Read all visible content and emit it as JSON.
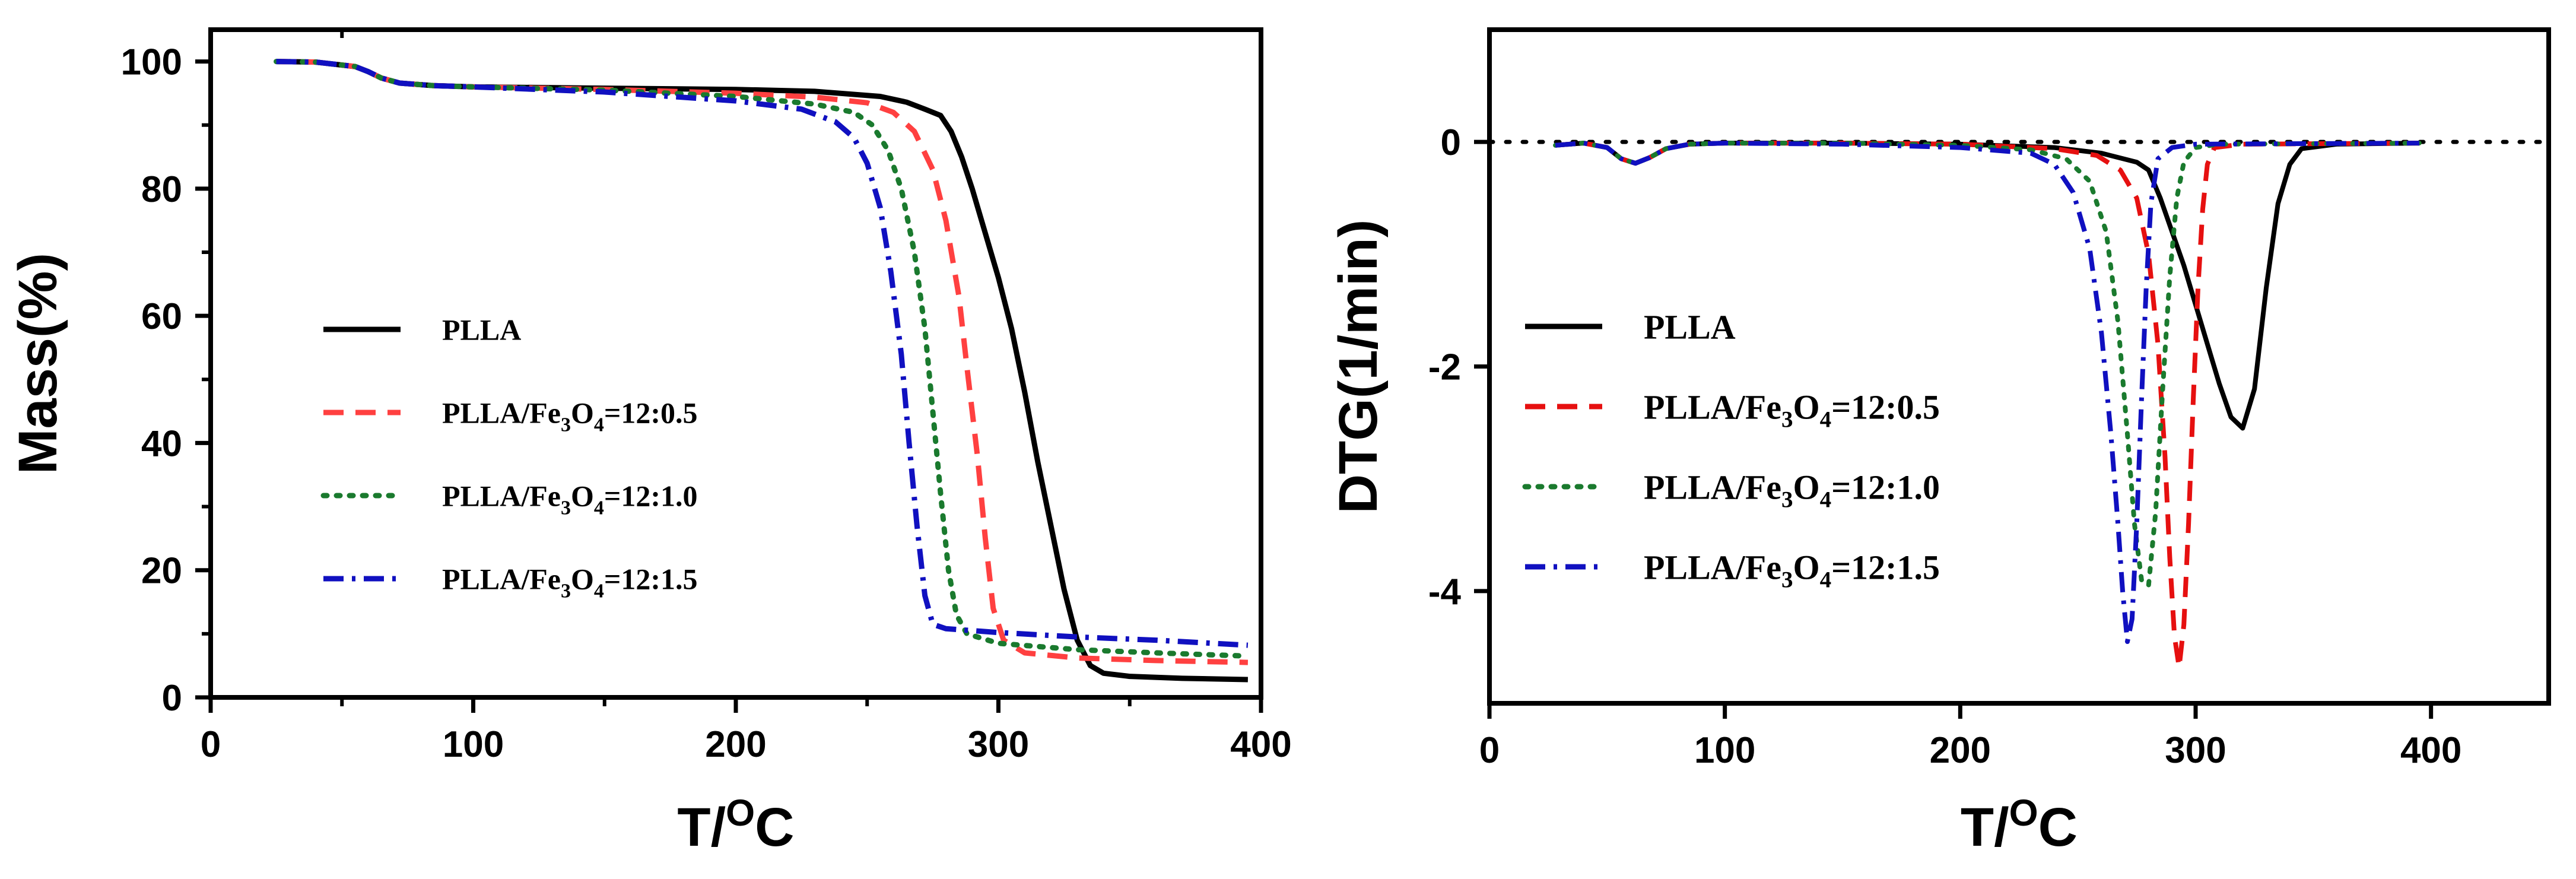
{
  "chart_data": [
    {
      "id": "mass",
      "type": "line",
      "xlabel": "T/",
      "xlabel_sup": "O",
      "xlabel_tail": "C",
      "ylabel": "Mass(%)",
      "xlim": [
        0,
        400
      ],
      "ylim": [
        0,
        105
      ],
      "xticks": [
        0,
        100,
        200,
        300,
        400
      ],
      "yticks": [
        0,
        20,
        40,
        60,
        80,
        100
      ],
      "legend_position": "center-left",
      "series": [
        {
          "name": "PLLA",
          "label_main": "PLLA",
          "label_sub": "",
          "label_mid": "",
          "label_tail": "",
          "color": "#000000",
          "dash": "solid",
          "points": [
            [
              25,
              100
            ],
            [
              40,
              99.9
            ],
            [
              55,
              99.2
            ],
            [
              60,
              98.4
            ],
            [
              65,
              97.4
            ],
            [
              72,
              96.6
            ],
            [
              85,
              96.2
            ],
            [
              100,
              96.0
            ],
            [
              150,
              95.8
            ],
            [
              200,
              95.6
            ],
            [
              230,
              95.3
            ],
            [
              255,
              94.5
            ],
            [
              265,
              93.6
            ],
            [
              272,
              92.5
            ],
            [
              278,
              91.5
            ],
            [
              282,
              89
            ],
            [
              286,
              85
            ],
            [
              290,
              80
            ],
            [
              295,
              73
            ],
            [
              300,
              66
            ],
            [
              305,
              58
            ],
            [
              310,
              48
            ],
            [
              315,
              37
            ],
            [
              320,
              27
            ],
            [
              325,
              17
            ],
            [
              330,
              9
            ],
            [
              335,
              5
            ],
            [
              340,
              3.8
            ],
            [
              350,
              3.3
            ],
            [
              370,
              3.0
            ],
            [
              395,
              2.8
            ]
          ]
        },
        {
          "name": "PLLA/Fe3O4=12:0.5",
          "label_main": "PLLA/Fe",
          "label_sub": "3",
          "label_mid": "O",
          "label_tail": "=12:0.5",
          "color": "#ff4040",
          "dash": "dashed",
          "points": [
            [
              25,
              100
            ],
            [
              40,
              99.9
            ],
            [
              55,
              99.2
            ],
            [
              60,
              98.4
            ],
            [
              65,
              97.4
            ],
            [
              72,
              96.6
            ],
            [
              85,
              96.2
            ],
            [
              100,
              96.0
            ],
            [
              150,
              95.6
            ],
            [
              200,
              95.0
            ],
            [
              230,
              94.4
            ],
            [
              250,
              93.5
            ],
            [
              260,
              92
            ],
            [
              268,
              89
            ],
            [
              275,
              83
            ],
            [
              280,
              75
            ],
            [
              285,
              63
            ],
            [
              288,
              52
            ],
            [
              292,
              38
            ],
            [
              295,
              25
            ],
            [
              298,
              14
            ],
            [
              302,
              9
            ],
            [
              310,
              7
            ],
            [
              330,
              6.2
            ],
            [
              360,
              5.8
            ],
            [
              395,
              5.5
            ]
          ]
        },
        {
          "name": "PLLA/Fe3O4=12:1.0",
          "label_main": "PLLA/Fe",
          "label_sub": "3",
          "label_mid": "O",
          "label_tail": "=12:1.0",
          "color": "#1a7a2e",
          "dash": "dotted",
          "points": [
            [
              25,
              100
            ],
            [
              40,
              99.9
            ],
            [
              55,
              99.2
            ],
            [
              60,
              98.4
            ],
            [
              65,
              97.4
            ],
            [
              72,
              96.6
            ],
            [
              85,
              96.2
            ],
            [
              100,
              96.0
            ],
            [
              150,
              95.5
            ],
            [
              200,
              94.5
            ],
            [
              230,
              93.3
            ],
            [
              245,
              92
            ],
            [
              252,
              90
            ],
            [
              258,
              86
            ],
            [
              263,
              80
            ],
            [
              268,
              70
            ],
            [
              272,
              58
            ],
            [
              275,
              45
            ],
            [
              278,
              32
            ],
            [
              281,
              20
            ],
            [
              284,
              13
            ],
            [
              288,
              10
            ],
            [
              300,
              8.5
            ],
            [
              330,
              7.5
            ],
            [
              360,
              7.0
            ],
            [
              395,
              6.5
            ]
          ]
        },
        {
          "name": "PLLA/Fe3O4=12:1.5",
          "label_main": "PLLA/Fe",
          "label_sub": "3",
          "label_mid": "O",
          "label_tail": "=12:1.5",
          "color": "#1010c0",
          "dash": "dashdot",
          "points": [
            [
              25,
              100
            ],
            [
              40,
              99.9
            ],
            [
              55,
              99.2
            ],
            [
              60,
              98.4
            ],
            [
              65,
              97.4
            ],
            [
              72,
              96.6
            ],
            [
              85,
              96.2
            ],
            [
              100,
              96.0
            ],
            [
              150,
              95.2
            ],
            [
              200,
              93.8
            ],
            [
              225,
              92.5
            ],
            [
              238,
              90.5
            ],
            [
              245,
              88
            ],
            [
              250,
              84
            ],
            [
              255,
              77
            ],
            [
              259,
              67
            ],
            [
              263,
              54
            ],
            [
              266,
              40
            ],
            [
              269,
              27
            ],
            [
              272,
              16
            ],
            [
              275,
              11.5
            ],
            [
              280,
              10.8
            ],
            [
              300,
              10.2
            ],
            [
              330,
              9.5
            ],
            [
              360,
              9.0
            ],
            [
              395,
              8.2
            ]
          ]
        }
      ]
    },
    {
      "id": "dtg",
      "type": "line",
      "xlabel": "T/",
      "xlabel_sup": "O",
      "xlabel_tail": "C",
      "ylabel": "DTG(1/min)",
      "xlim": [
        0,
        450
      ],
      "ylim": [
        -5,
        1
      ],
      "xticks": [
        0,
        100,
        200,
        300,
        400
      ],
      "yticks": [
        0,
        -2,
        -4
      ],
      "reference_line": 0,
      "legend_position": "center",
      "series": [
        {
          "name": "PLLA",
          "label_main": "PLLA",
          "label_sub": "",
          "label_mid": "",
          "label_tail": "",
          "color": "#000000",
          "dash": "solid",
          "points": [
            [
              28,
              -0.03
            ],
            [
              40,
              -0.01
            ],
            [
              50,
              -0.05
            ],
            [
              56,
              -0.15
            ],
            [
              62,
              -0.19
            ],
            [
              68,
              -0.14
            ],
            [
              75,
              -0.06
            ],
            [
              85,
              -0.02
            ],
            [
              100,
              -0.01
            ],
            [
              150,
              -0.01
            ],
            [
              200,
              -0.02
            ],
            [
              240,
              -0.05
            ],
            [
              260,
              -0.1
            ],
            [
              275,
              -0.18
            ],
            [
              280,
              -0.25
            ],
            [
              285,
              -0.5
            ],
            [
              290,
              -0.8
            ],
            [
              295,
              -1.1
            ],
            [
              300,
              -1.45
            ],
            [
              305,
              -1.8
            ],
            [
              310,
              -2.15
            ],
            [
              315,
              -2.45
            ],
            [
              320,
              -2.55
            ],
            [
              325,
              -2.2
            ],
            [
              330,
              -1.3
            ],
            [
              335,
              -0.55
            ],
            [
              340,
              -0.2
            ],
            [
              345,
              -0.06
            ],
            [
              360,
              -0.02
            ],
            [
              395,
              -0.01
            ]
          ]
        },
        {
          "name": "PLLA/Fe3O4=12:0.5",
          "label_main": "PLLA/Fe",
          "label_sub": "3",
          "label_mid": "O",
          "label_tail": "=12:0.5",
          "color": "#e61010",
          "dash": "dashed",
          "points": [
            [
              28,
              -0.03
            ],
            [
              40,
              -0.01
            ],
            [
              50,
              -0.05
            ],
            [
              56,
              -0.15
            ],
            [
              62,
              -0.19
            ],
            [
              68,
              -0.14
            ],
            [
              75,
              -0.06
            ],
            [
              85,
              -0.02
            ],
            [
              100,
              -0.01
            ],
            [
              150,
              -0.01
            ],
            [
              200,
              -0.02
            ],
            [
              240,
              -0.06
            ],
            [
              258,
              -0.12
            ],
            [
              268,
              -0.25
            ],
            [
              275,
              -0.5
            ],
            [
              280,
              -1.0
            ],
            [
              284,
              -1.8
            ],
            [
              287,
              -2.8
            ],
            [
              289,
              -3.7
            ],
            [
              291,
              -4.4
            ],
            [
              293,
              -4.68
            ],
            [
              295,
              -4.3
            ],
            [
              297,
              -3.4
            ],
            [
              299,
              -2.3
            ],
            [
              301,
              -1.3
            ],
            [
              303,
              -0.6
            ],
            [
              305,
              -0.2
            ],
            [
              308,
              -0.05
            ],
            [
              320,
              -0.02
            ],
            [
              395,
              -0.01
            ]
          ]
        },
        {
          "name": "PLLA/Fe3O4=12:1.0",
          "label_main": "PLLA/Fe",
          "label_sub": "3",
          "label_mid": "O",
          "label_tail": "=12:1.0",
          "color": "#1a7a2e",
          "dash": "dotted",
          "points": [
            [
              28,
              -0.03
            ],
            [
              40,
              -0.01
            ],
            [
              50,
              -0.05
            ],
            [
              56,
              -0.15
            ],
            [
              62,
              -0.19
            ],
            [
              68,
              -0.14
            ],
            [
              75,
              -0.06
            ],
            [
              85,
              -0.02
            ],
            [
              100,
              -0.01
            ],
            [
              150,
              -0.01
            ],
            [
              200,
              -0.03
            ],
            [
              230,
              -0.07
            ],
            [
              245,
              -0.15
            ],
            [
              255,
              -0.35
            ],
            [
              262,
              -0.8
            ],
            [
              267,
              -1.6
            ],
            [
              271,
              -2.6
            ],
            [
              274,
              -3.4
            ],
            [
              277,
              -3.9
            ],
            [
              280,
              -3.95
            ],
            [
              283,
              -3.3
            ],
            [
              286,
              -2.2
            ],
            [
              289,
              -1.2
            ],
            [
              292,
              -0.5
            ],
            [
              295,
              -0.18
            ],
            [
              300,
              -0.05
            ],
            [
              310,
              -0.02
            ],
            [
              395,
              -0.01
            ]
          ]
        },
        {
          "name": "PLLA/Fe3O4=12:1.5",
          "label_main": "PLLA/Fe",
          "label_sub": "3",
          "label_mid": "O",
          "label_tail": "=12:1.5",
          "color": "#1010c0",
          "dash": "dashdot",
          "points": [
            [
              28,
              -0.03
            ],
            [
              40,
              -0.01
            ],
            [
              50,
              -0.05
            ],
            [
              56,
              -0.15
            ],
            [
              62,
              -0.19
            ],
            [
              68,
              -0.14
            ],
            [
              75,
              -0.06
            ],
            [
              85,
              -0.02
            ],
            [
              100,
              -0.01
            ],
            [
              150,
              -0.02
            ],
            [
              200,
              -0.05
            ],
            [
              230,
              -0.1
            ],
            [
              240,
              -0.2
            ],
            [
              248,
              -0.45
            ],
            [
              255,
              -0.95
            ],
            [
              260,
              -1.7
            ],
            [
              264,
              -2.6
            ],
            [
              267,
              -3.4
            ],
            [
              269,
              -4.0
            ],
            [
              271,
              -4.45
            ],
            [
              273,
              -4.25
            ],
            [
              275,
              -3.4
            ],
            [
              277,
              -2.3
            ],
            [
              279,
              -1.3
            ],
            [
              281,
              -0.55
            ],
            [
              284,
              -0.15
            ],
            [
              290,
              -0.05
            ],
            [
              300,
              -0.02
            ],
            [
              395,
              -0.01
            ]
          ]
        }
      ]
    }
  ]
}
